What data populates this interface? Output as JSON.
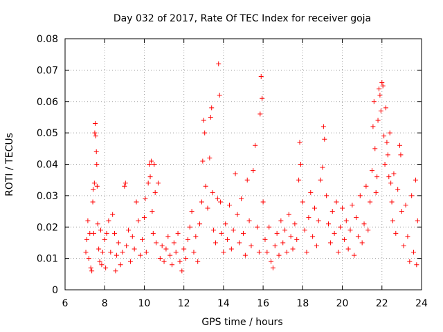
{
  "chart_data": {
    "type": "scatter",
    "title": "Day 032 of 2017, Rate Of TEC Index for receiver goja",
    "xlabel": "GPS time / hours",
    "ylabel": "ROTI / TECUs",
    "xlim": [
      6,
      24
    ],
    "ylim": [
      0,
      0.08
    ],
    "x_ticks": [
      "6",
      "8",
      "10",
      "12",
      "14",
      "16",
      "18",
      "20",
      "22",
      "24"
    ],
    "y_ticks": [
      "0",
      "0.01",
      "0.02",
      "0.03",
      "0.04",
      "0.05",
      "0.06",
      "0.07",
      "0.08"
    ],
    "grid": true,
    "marker": "+",
    "color": "#ff0000",
    "series": [
      {
        "name": "ROTI",
        "points": [
          [
            7.05,
            0.012
          ],
          [
            7.1,
            0.016
          ],
          [
            7.15,
            0.022
          ],
          [
            7.2,
            0.01
          ],
          [
            7.25,
            0.018
          ],
          [
            7.3,
            0.007
          ],
          [
            7.35,
            0.006
          ],
          [
            7.4,
            0.028
          ],
          [
            7.42,
            0.032
          ],
          [
            7.45,
            0.018
          ],
          [
            7.48,
            0.034
          ],
          [
            7.5,
            0.05
          ],
          [
            7.52,
            0.053
          ],
          [
            7.55,
            0.049
          ],
          [
            7.58,
            0.044
          ],
          [
            7.6,
            0.04
          ],
          [
            7.62,
            0.033
          ],
          [
            7.65,
            0.021
          ],
          [
            7.7,
            0.013
          ],
          [
            7.75,
            0.009
          ],
          [
            7.8,
            0.019
          ],
          [
            7.85,
            0.008
          ],
          [
            7.9,
            0.012
          ],
          [
            8.0,
            0.016
          ],
          [
            8.05,
            0.007
          ],
          [
            8.1,
            0.018
          ],
          [
            8.2,
            0.022
          ],
          [
            8.3,
            0.012
          ],
          [
            8.4,
            0.024
          ],
          [
            8.5,
            0.018
          ],
          [
            8.55,
            0.006
          ],
          [
            8.6,
            0.011
          ],
          [
            8.7,
            0.015
          ],
          [
            8.8,
            0.008
          ],
          [
            8.9,
            0.012
          ],
          [
            9.0,
            0.033
          ],
          [
            9.05,
            0.034
          ],
          [
            9.1,
            0.014
          ],
          [
            9.2,
            0.019
          ],
          [
            9.3,
            0.009
          ],
          [
            9.4,
            0.017
          ],
          [
            9.5,
            0.013
          ],
          [
            9.6,
            0.028
          ],
          [
            9.7,
            0.022
          ],
          [
            9.8,
            0.011
          ],
          [
            9.9,
            0.016
          ],
          [
            10.0,
            0.023
          ],
          [
            10.05,
            0.029
          ],
          [
            10.1,
            0.012
          ],
          [
            10.2,
            0.034
          ],
          [
            10.25,
            0.04
          ],
          [
            10.3,
            0.036
          ],
          [
            10.35,
            0.041
          ],
          [
            10.4,
            0.025
          ],
          [
            10.45,
            0.018
          ],
          [
            10.5,
            0.04
          ],
          [
            10.55,
            0.031
          ],
          [
            10.6,
            0.015
          ],
          [
            10.7,
            0.034
          ],
          [
            10.8,
            0.01
          ],
          [
            10.9,
            0.014
          ],
          [
            11.0,
            0.009
          ],
          [
            11.1,
            0.013
          ],
          [
            11.2,
            0.017
          ],
          [
            11.3,
            0.011
          ],
          [
            11.4,
            0.008
          ],
          [
            11.5,
            0.015
          ],
          [
            11.6,
            0.012
          ],
          [
            11.7,
            0.018
          ],
          [
            11.8,
            0.009
          ],
          [
            11.9,
            0.006
          ],
          [
            12.0,
            0.013
          ],
          [
            12.1,
            0.01
          ],
          [
            12.2,
            0.016
          ],
          [
            12.3,
            0.02
          ],
          [
            12.4,
            0.025
          ],
          [
            12.5,
            0.012
          ],
          [
            12.6,
            0.017
          ],
          [
            12.7,
            0.009
          ],
          [
            12.8,
            0.021
          ],
          [
            12.9,
            0.028
          ],
          [
            12.95,
            0.041
          ],
          [
            13.0,
            0.054
          ],
          [
            13.05,
            0.05
          ],
          [
            13.1,
            0.033
          ],
          [
            13.2,
            0.026
          ],
          [
            13.3,
            0.042
          ],
          [
            13.35,
            0.055
          ],
          [
            13.4,
            0.058
          ],
          [
            13.45,
            0.031
          ],
          [
            13.5,
            0.019
          ],
          [
            13.6,
            0.015
          ],
          [
            13.7,
            0.029
          ],
          [
            13.75,
            0.072
          ],
          [
            13.8,
            0.062
          ],
          [
            13.85,
            0.028
          ],
          [
            13.9,
            0.018
          ],
          [
            14.0,
            0.012
          ],
          [
            14.1,
            0.021
          ],
          [
            14.2,
            0.016
          ],
          [
            14.3,
            0.027
          ],
          [
            14.4,
            0.013
          ],
          [
            14.5,
            0.019
          ],
          [
            14.6,
            0.037
          ],
          [
            14.7,
            0.024
          ],
          [
            14.8,
            0.015
          ],
          [
            14.9,
            0.029
          ],
          [
            15.0,
            0.018
          ],
          [
            15.1,
            0.011
          ],
          [
            15.2,
            0.035
          ],
          [
            15.3,
            0.022
          ],
          [
            15.4,
            0.014
          ],
          [
            15.5,
            0.038
          ],
          [
            15.6,
            0.046
          ],
          [
            15.7,
            0.02
          ],
          [
            15.8,
            0.012
          ],
          [
            15.85,
            0.056
          ],
          [
            15.9,
            0.068
          ],
          [
            15.95,
            0.061
          ],
          [
            16.0,
            0.028
          ],
          [
            16.1,
            0.016
          ],
          [
            16.2,
            0.012
          ],
          [
            16.3,
            0.02
          ],
          [
            16.4,
            0.009
          ],
          [
            16.5,
            0.007
          ],
          [
            16.6,
            0.014
          ],
          [
            16.7,
            0.018
          ],
          [
            16.8,
            0.011
          ],
          [
            16.9,
            0.022
          ],
          [
            17.0,
            0.015
          ],
          [
            17.1,
            0.019
          ],
          [
            17.2,
            0.012
          ],
          [
            17.3,
            0.024
          ],
          [
            17.4,
            0.017
          ],
          [
            17.5,
            0.013
          ],
          [
            17.6,
            0.021
          ],
          [
            17.7,
            0.016
          ],
          [
            17.8,
            0.035
          ],
          [
            17.85,
            0.047
          ],
          [
            17.9,
            0.04
          ],
          [
            18.0,
            0.028
          ],
          [
            18.1,
            0.019
          ],
          [
            18.2,
            0.012
          ],
          [
            18.3,
            0.023
          ],
          [
            18.4,
            0.031
          ],
          [
            18.5,
            0.017
          ],
          [
            18.6,
            0.026
          ],
          [
            18.7,
            0.014
          ],
          [
            18.8,
            0.022
          ],
          [
            18.9,
            0.035
          ],
          [
            19.0,
            0.039
          ],
          [
            19.05,
            0.052
          ],
          [
            19.1,
            0.048
          ],
          [
            19.2,
            0.03
          ],
          [
            19.3,
            0.021
          ],
          [
            19.4,
            0.015
          ],
          [
            19.5,
            0.025
          ],
          [
            19.6,
            0.018
          ],
          [
            19.7,
            0.028
          ],
          [
            19.8,
            0.012
          ],
          [
            19.9,
            0.02
          ],
          [
            20.0,
            0.026
          ],
          [
            20.1,
            0.016
          ],
          [
            20.2,
            0.022
          ],
          [
            20.3,
            0.013
          ],
          [
            20.4,
            0.019
          ],
          [
            20.5,
            0.027
          ],
          [
            20.6,
            0.011
          ],
          [
            20.7,
            0.023
          ],
          [
            20.8,
            0.017
          ],
          [
            20.9,
            0.03
          ],
          [
            21.0,
            0.015
          ],
          [
            21.1,
            0.021
          ],
          [
            21.2,
            0.033
          ],
          [
            21.3,
            0.019
          ],
          [
            21.4,
            0.028
          ],
          [
            21.5,
            0.038
          ],
          [
            21.55,
            0.052
          ],
          [
            21.6,
            0.06
          ],
          [
            21.65,
            0.045
          ],
          [
            21.7,
            0.031
          ],
          [
            21.75,
            0.036
          ],
          [
            21.8,
            0.054
          ],
          [
            21.85,
            0.064
          ],
          [
            21.9,
            0.062
          ],
          [
            21.95,
            0.057
          ],
          [
            22.0,
            0.066
          ],
          [
            22.05,
            0.065
          ],
          [
            22.1,
            0.049
          ],
          [
            22.15,
            0.04
          ],
          [
            22.2,
            0.058
          ],
          [
            22.25,
            0.047
          ],
          [
            22.3,
            0.043
          ],
          [
            22.35,
            0.036
          ],
          [
            22.4,
            0.05
          ],
          [
            22.45,
            0.034
          ],
          [
            22.5,
            0.028
          ],
          [
            22.55,
            0.022
          ],
          [
            22.6,
            0.037
          ],
          [
            22.7,
            0.018
          ],
          [
            22.8,
            0.032
          ],
          [
            22.9,
            0.046
          ],
          [
            22.95,
            0.043
          ],
          [
            23.0,
            0.025
          ],
          [
            23.1,
            0.014
          ],
          [
            23.2,
            0.027
          ],
          [
            23.3,
            0.017
          ],
          [
            23.4,
            0.009
          ],
          [
            23.5,
            0.03
          ],
          [
            23.6,
            0.012
          ],
          [
            23.7,
            0.035
          ],
          [
            23.75,
            0.008
          ],
          [
            23.8,
            0.022
          ]
        ]
      }
    ]
  }
}
